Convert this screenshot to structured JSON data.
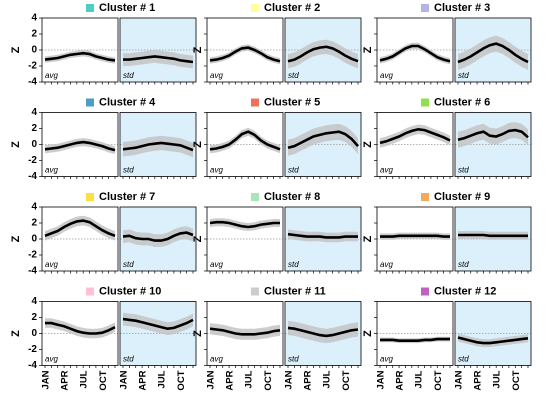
{
  "axes": {
    "categories": [
      "JAN",
      null,
      null,
      "APR",
      null,
      null,
      "JUL",
      null,
      null,
      "OCT",
      null,
      null
    ],
    "ylim": [
      -4,
      4
    ],
    "yticks": [
      -4,
      -2,
      0,
      2,
      4
    ]
  },
  "chart_data": [
    {
      "type": "line",
      "title": "Cluster # 1",
      "color": "#4ecdc4",
      "ylabel": "Z",
      "panels": [
        {
          "label": "avg",
          "background": "#ffffff",
          "color": "#000000",
          "values": [
            -1.2,
            -1.1,
            -1,
            -0.8,
            -0.6,
            -0.5,
            -0.4,
            -0.5,
            -0.8,
            -1,
            -1.2,
            -1.3
          ],
          "spread": 0.4
        },
        {
          "label": "std",
          "background": "#dcf0fb",
          "color": "#000000",
          "values": [
            -1.2,
            -1.2,
            -1.1,
            -1,
            -0.9,
            -0.8,
            -0.9,
            -1,
            -1.1,
            -1.3,
            -1.4,
            -1.5
          ],
          "spread": 0.8
        }
      ]
    },
    {
      "type": "line",
      "title": "Cluster # 2",
      "color": "#ffff99",
      "ylabel": "Z",
      "panels": [
        {
          "label": "avg",
          "background": "#ffffff",
          "color": "#000000",
          "values": [
            -1.3,
            -1.2,
            -1,
            -0.7,
            -0.2,
            0.2,
            0.3,
            0,
            -0.4,
            -0.9,
            -1.2,
            -1.4
          ],
          "spread": 0.4
        },
        {
          "label": "std",
          "background": "#dcf0fb",
          "color": "#000000",
          "values": [
            -1.4,
            -1.2,
            -0.8,
            -0.3,
            0.1,
            0.3,
            0.4,
            0.2,
            -0.2,
            -0.7,
            -1.1,
            -1.4
          ],
          "spread": 0.9
        }
      ]
    },
    {
      "type": "line",
      "title": "Cluster # 3",
      "color": "#b3b3e6",
      "ylabel": "Z",
      "panels": [
        {
          "label": "avg",
          "background": "#ffffff",
          "color": "#000000",
          "values": [
            -1.3,
            -1.1,
            -0.8,
            -0.3,
            0.2,
            0.5,
            0.5,
            0.1,
            -0.4,
            -0.9,
            -1.2,
            -1.4
          ],
          "spread": 0.4
        },
        {
          "label": "std",
          "background": "#dcf0fb",
          "color": "#000000",
          "values": [
            -1.5,
            -1.2,
            -0.8,
            -0.3,
            0.2,
            0.6,
            0.8,
            0.5,
            0,
            -0.6,
            -1.1,
            -1.5
          ],
          "spread": 1.0
        }
      ]
    },
    {
      "type": "line",
      "title": "Cluster # 4",
      "color": "#4b9cc9",
      "ylabel": "Z",
      "panels": [
        {
          "label": "avg",
          "background": "#ffffff",
          "color": "#000000",
          "values": [
            -0.6,
            -0.5,
            -0.4,
            -0.2,
            0,
            0.2,
            0.3,
            0.2,
            0,
            -0.2,
            -0.5,
            -0.7
          ],
          "spread": 0.5
        },
        {
          "label": "std",
          "background": "#dcf0fb",
          "color": "#000000",
          "values": [
            -0.6,
            -0.5,
            -0.4,
            -0.2,
            0,
            0.1,
            0.2,
            0.1,
            0,
            -0.1,
            -0.4,
            -0.7
          ],
          "spread": 0.9
        }
      ]
    },
    {
      "type": "line",
      "title": "Cluster # 5",
      "color": "#f07060",
      "ylabel": "Z",
      "panels": [
        {
          "label": "avg",
          "background": "#ffffff",
          "color": "#000000",
          "values": [
            -0.6,
            -0.5,
            -0.3,
            0,
            0.6,
            1.3,
            1.6,
            1.2,
            0.5,
            0,
            -0.3,
            -0.6
          ],
          "spread": 0.5
        },
        {
          "label": "std",
          "background": "#dcf0fb",
          "color": "#000000",
          "values": [
            -0.4,
            -0.2,
            0.2,
            0.6,
            1,
            1.2,
            1.4,
            1.5,
            1.6,
            1.3,
            0.7,
            -0.2
          ],
          "spread": 1.0
        }
      ]
    },
    {
      "type": "line",
      "title": "Cluster # 6",
      "color": "#90e050",
      "ylabel": "Z",
      "panels": [
        {
          "label": "avg",
          "background": "#ffffff",
          "color": "#000000",
          "values": [
            0.2,
            0.4,
            0.7,
            1,
            1.4,
            1.7,
            1.9,
            1.8,
            1.5,
            1.2,
            0.9,
            0.5
          ],
          "spread": 0.6
        },
        {
          "label": "std",
          "background": "#dcf0fb",
          "color": "#000000",
          "values": [
            0.6,
            0.8,
            1.1,
            1.4,
            1.6,
            1.1,
            1,
            1.3,
            1.7,
            1.8,
            1.6,
            0.9
          ],
          "spread": 1.0
        }
      ]
    },
    {
      "type": "line",
      "title": "Cluster # 7",
      "color": "#ffe040",
      "ylabel": "Z",
      "panels": [
        {
          "label": "avg",
          "background": "#ffffff",
          "color": "#000000",
          "values": [
            0.4,
            0.7,
            1,
            1.5,
            1.9,
            2.2,
            2.3,
            2.1,
            1.6,
            1.1,
            0.7,
            0.4
          ],
          "spread": 0.6
        },
        {
          "label": "std",
          "background": "#dcf0fb",
          "color": "#000000",
          "values": [
            0.3,
            0.4,
            0.1,
            0,
            0,
            -0.2,
            -0.2,
            0,
            0.4,
            0.7,
            0.8,
            0.5
          ],
          "spread": 0.8
        }
      ]
    },
    {
      "type": "line",
      "title": "Cluster # 8",
      "color": "#a8e6b8",
      "ylabel": "Z",
      "panels": [
        {
          "label": "avg",
          "background": "#ffffff",
          "color": "#000000",
          "values": [
            2,
            2.1,
            2.1,
            2,
            1.8,
            1.6,
            1.5,
            1.6,
            1.8,
            1.9,
            2,
            2
          ],
          "spread": 0.5
        },
        {
          "label": "std",
          "background": "#dcf0fb",
          "color": "#000000",
          "values": [
            0.6,
            0.5,
            0.4,
            0.3,
            0.3,
            0.3,
            0.2,
            0.2,
            0.2,
            0.3,
            0.3,
            0.3
          ],
          "spread": 0.6
        }
      ]
    },
    {
      "type": "line",
      "title": "Cluster # 9",
      "color": "#f5a95a",
      "ylabel": "Z",
      "panels": [
        {
          "label": "avg",
          "background": "#ffffff",
          "color": "#000000",
          "values": [
            0.3,
            0.3,
            0.3,
            0.4,
            0.4,
            0.4,
            0.4,
            0.4,
            0.4,
            0.4,
            0.3,
            0.3
          ],
          "spread": 0.4
        },
        {
          "label": "std",
          "background": "#dcf0fb",
          "color": "#000000",
          "values": [
            0.5,
            0.5,
            0.5,
            0.5,
            0.5,
            0.4,
            0.4,
            0.4,
            0.4,
            0.4,
            0.4,
            0.4
          ],
          "spread": 0.5
        }
      ]
    },
    {
      "type": "line",
      "title": "Cluster # 10",
      "color": "#ffc0d8",
      "ylabel": "Z",
      "panels": [
        {
          "label": "avg",
          "background": "#ffffff",
          "color": "#000000",
          "values": [
            1.3,
            1.3,
            1.1,
            0.9,
            0.6,
            0.3,
            0.1,
            0,
            0,
            0.1,
            0.4,
            0.8
          ],
          "spread": 0.6
        },
        {
          "label": "std",
          "background": "#dcf0fb",
          "color": "#000000",
          "values": [
            1.8,
            1.7,
            1.6,
            1.4,
            1.2,
            1,
            0.8,
            0.6,
            0.7,
            1,
            1.3,
            1.7
          ],
          "spread": 0.8
        }
      ]
    },
    {
      "type": "line",
      "title": "Cluster # 11",
      "color": "#cccccc",
      "ylabel": "Z",
      "panels": [
        {
          "label": "avg",
          "background": "#ffffff",
          "color": "#000000",
          "values": [
            0.6,
            0.5,
            0.4,
            0.2,
            0,
            -0.1,
            -0.1,
            -0.1,
            0,
            0.1,
            0.3,
            0.4
          ],
          "spread": 0.7
        },
        {
          "label": "std",
          "background": "#dcf0fb",
          "color": "#000000",
          "values": [
            0.7,
            0.6,
            0.4,
            0.2,
            0,
            -0.2,
            -0.3,
            -0.2,
            0,
            0.2,
            0.4,
            0.5
          ],
          "spread": 0.9
        }
      ]
    },
    {
      "type": "line",
      "title": "Cluster # 12",
      "color": "#c060c0",
      "ylabel": "Z",
      "panels": [
        {
          "label": "avg",
          "background": "#ffffff",
          "color": "#000000",
          "values": [
            -0.8,
            -0.8,
            -0.8,
            -0.9,
            -0.9,
            -0.9,
            -0.9,
            -0.8,
            -0.8,
            -0.7,
            -0.7,
            -0.7
          ],
          "spread": 0.3
        },
        {
          "label": "std",
          "background": "#dcf0fb",
          "color": "#000000",
          "values": [
            -0.5,
            -0.7,
            -0.9,
            -1.1,
            -1.2,
            -1.2,
            -1.1,
            -1,
            -0.9,
            -0.8,
            -0.7,
            -0.6
          ],
          "spread": 0.5
        }
      ]
    }
  ]
}
